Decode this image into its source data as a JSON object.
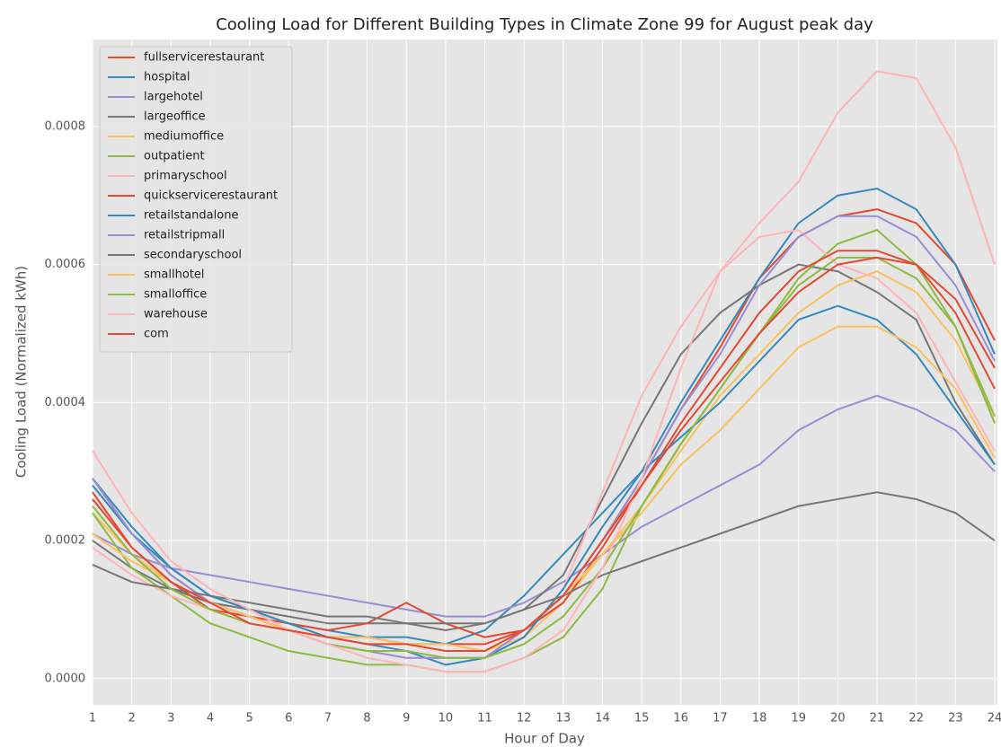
{
  "chart_data": {
    "type": "line",
    "title": "Cooling Load for Different Building Types in Climate Zone 99 for August peak day",
    "x_label": "Hour of Day",
    "y_label": "Cooling Load (Normalized kWh)",
    "x": [
      1,
      2,
      3,
      4,
      5,
      6,
      7,
      8,
      9,
      10,
      11,
      12,
      13,
      14,
      15,
      16,
      17,
      18,
      19,
      20,
      21,
      22,
      23,
      24
    ],
    "xlim": [
      1,
      24
    ],
    "xticks": [
      1,
      2,
      3,
      4,
      5,
      6,
      7,
      8,
      9,
      10,
      11,
      12,
      13,
      14,
      15,
      16,
      17,
      18,
      19,
      20,
      21,
      22,
      23,
      24
    ],
    "ylim": [
      -3.8e-05,
      0.000926
    ],
    "yticks": [
      {
        "value": 0,
        "label": "0.0000"
      },
      {
        "value": 0.0002,
        "label": "0.0002"
      },
      {
        "value": 0.0004,
        "label": "0.0004"
      },
      {
        "value": 0.0006,
        "label": "0.0006"
      },
      {
        "value": 0.0008,
        "label": "0.0008"
      }
    ],
    "grid": true,
    "legend": "upper left",
    "series": [
      {
        "name": "fullservicerestaurant",
        "color": "#E24A33",
        "values": [
          0.00029,
          0.00021,
          0.00015,
          0.00011,
          9e-05,
          7e-05,
          6e-05,
          6e-05,
          5e-05,
          5e-05,
          5e-05,
          7e-05,
          0.00012,
          0.0002,
          0.00029,
          0.00039,
          0.00048,
          0.00058,
          0.00064,
          0.00067,
          0.00068,
          0.00066,
          0.0006,
          0.00049
        ]
      },
      {
        "name": "hospital",
        "color": "#348ABD",
        "values": [
          0.00028,
          0.00021,
          0.00016,
          0.00012,
          0.0001,
          8e-05,
          7e-05,
          6e-05,
          6e-05,
          5e-05,
          7e-05,
          0.00012,
          0.00018,
          0.00024,
          0.0003,
          0.0004,
          0.00049,
          0.00058,
          0.00066,
          0.0007,
          0.00071,
          0.00068,
          0.0006,
          0.00047
        ]
      },
      {
        "name": "largehotel",
        "color": "#988ED5",
        "values": [
          0.00021,
          0.00018,
          0.00016,
          0.00015,
          0.00014,
          0.00013,
          0.00012,
          0.00011,
          0.0001,
          9e-05,
          9e-05,
          0.00011,
          0.00014,
          0.00018,
          0.00022,
          0.00025,
          0.00028,
          0.00031,
          0.00036,
          0.00039,
          0.00041,
          0.00039,
          0.00036,
          0.0003
        ]
      },
      {
        "name": "largeoffice",
        "color": "#777777",
        "values": [
          0.0002,
          0.00016,
          0.00013,
          0.00011,
          0.0001,
          9e-05,
          8e-05,
          8e-05,
          8e-05,
          7e-05,
          8e-05,
          0.0001,
          0.00015,
          0.00026,
          0.00037,
          0.00047,
          0.00053,
          0.00057,
          0.0006,
          0.00059,
          0.00056,
          0.00052,
          0.0004,
          0.00031
        ]
      },
      {
        "name": "mediumoffice",
        "color": "#FBC15E",
        "values": [
          0.00024,
          0.00018,
          0.00014,
          0.00011,
          9e-05,
          7e-05,
          6e-05,
          5e-05,
          5e-05,
          4e-05,
          4e-05,
          6e-05,
          0.00011,
          0.00018,
          0.00025,
          0.00033,
          0.00041,
          0.00047,
          0.00053,
          0.00057,
          0.00059,
          0.00056,
          0.00049,
          0.00038
        ]
      },
      {
        "name": "outpatient",
        "color": "#8EBA42",
        "values": [
          0.00024,
          0.00016,
          0.00012,
          8e-05,
          6e-05,
          4e-05,
          3e-05,
          2e-05,
          2e-05,
          1e-05,
          1e-05,
          3e-05,
          6e-05,
          0.00013,
          0.00025,
          0.00034,
          0.00042,
          0.0005,
          0.00058,
          0.00063,
          0.00065,
          0.0006,
          0.00051,
          0.00038
        ]
      },
      {
        "name": "primaryschool",
        "color": "#FFB5B8",
        "values": [
          0.00019,
          0.00015,
          0.00012,
          0.0001,
          8e-05,
          7e-05,
          5e-05,
          4e-05,
          3e-05,
          3e-05,
          3e-05,
          6e-05,
          0.00013,
          0.00027,
          0.00041,
          0.00051,
          0.00059,
          0.00064,
          0.00065,
          0.0006,
          0.00058,
          0.00053,
          0.00043,
          0.00033
        ]
      },
      {
        "name": "quickservicerestaurant",
        "color": "#E24A33",
        "values": [
          0.00026,
          0.00019,
          0.00014,
          0.0001,
          9e-05,
          8e-05,
          7e-05,
          8e-05,
          0.00011,
          8e-05,
          6e-05,
          7e-05,
          0.00011,
          0.00019,
          0.00028,
          0.00037,
          0.00045,
          0.00053,
          0.00059,
          0.00062,
          0.00062,
          0.0006,
          0.00053,
          0.00042
        ]
      },
      {
        "name": "retailstandalone",
        "color": "#348ABD",
        "values": [
          0.00029,
          0.00022,
          0.00016,
          0.00012,
          0.0001,
          8e-05,
          6e-05,
          5e-05,
          4e-05,
          2e-05,
          3e-05,
          6e-05,
          0.00013,
          0.00022,
          0.0003,
          0.00035,
          0.0004,
          0.00046,
          0.00052,
          0.00054,
          0.00052,
          0.00047,
          0.00039,
          0.00031
        ]
      },
      {
        "name": "retailstripmall",
        "color": "#988ED5",
        "values": [
          0.00029,
          0.00021,
          0.00015,
          0.00011,
          9e-05,
          7e-05,
          5e-05,
          4e-05,
          3e-05,
          3e-05,
          3e-05,
          7e-05,
          0.00012,
          0.0002,
          0.00029,
          0.00039,
          0.00047,
          0.00057,
          0.00064,
          0.00067,
          0.00067,
          0.00064,
          0.00057,
          0.00046
        ]
      },
      {
        "name": "secondaryschool",
        "color": "#777777",
        "values": [
          0.000165,
          0.00014,
          0.00013,
          0.00012,
          0.00011,
          0.0001,
          9e-05,
          9e-05,
          8e-05,
          8e-05,
          8e-05,
          0.0001,
          0.00012,
          0.00015,
          0.00017,
          0.00019,
          0.00021,
          0.00023,
          0.00025,
          0.00026,
          0.00027,
          0.00026,
          0.00024,
          0.0002
        ]
      },
      {
        "name": "smallhotel",
        "color": "#FBC15E",
        "values": [
          0.00021,
          0.00017,
          0.00014,
          0.00011,
          9e-05,
          7e-05,
          6e-05,
          6e-05,
          5e-05,
          5e-05,
          4e-05,
          7e-05,
          0.00012,
          0.00018,
          0.00024,
          0.00031,
          0.00036,
          0.00042,
          0.00048,
          0.00051,
          0.00051,
          0.00048,
          0.00042,
          0.00032
        ]
      },
      {
        "name": "smalloffice",
        "color": "#8EBA42",
        "values": [
          0.00025,
          0.00018,
          0.00013,
          0.0001,
          8e-05,
          7e-05,
          5e-05,
          4e-05,
          4e-05,
          3e-05,
          3e-05,
          5e-05,
          9e-05,
          0.00016,
          0.00025,
          0.00034,
          0.00042,
          0.0005,
          0.00057,
          0.00061,
          0.00061,
          0.00058,
          0.00051,
          0.00037
        ]
      },
      {
        "name": "warehouse",
        "color": "#FFB5B8",
        "values": [
          0.00033,
          0.00024,
          0.00017,
          0.00013,
          0.0001,
          7e-05,
          5e-05,
          3e-05,
          2e-05,
          1e-05,
          1e-05,
          3e-05,
          7e-05,
          0.00016,
          0.00029,
          0.00045,
          0.00059,
          0.00066,
          0.00072,
          0.00082,
          0.00088,
          0.00087,
          0.00077,
          0.0006
        ]
      },
      {
        "name": "com",
        "color": "#E24A33",
        "values": [
          0.00027,
          0.00019,
          0.00014,
          0.00011,
          8e-05,
          7e-05,
          6e-05,
          5e-05,
          5e-05,
          4e-05,
          4e-05,
          7e-05,
          0.00012,
          0.0002,
          0.00028,
          0.00036,
          0.00043,
          0.0005,
          0.00056,
          0.0006,
          0.00061,
          0.0006,
          0.00055,
          0.00045
        ]
      }
    ]
  }
}
